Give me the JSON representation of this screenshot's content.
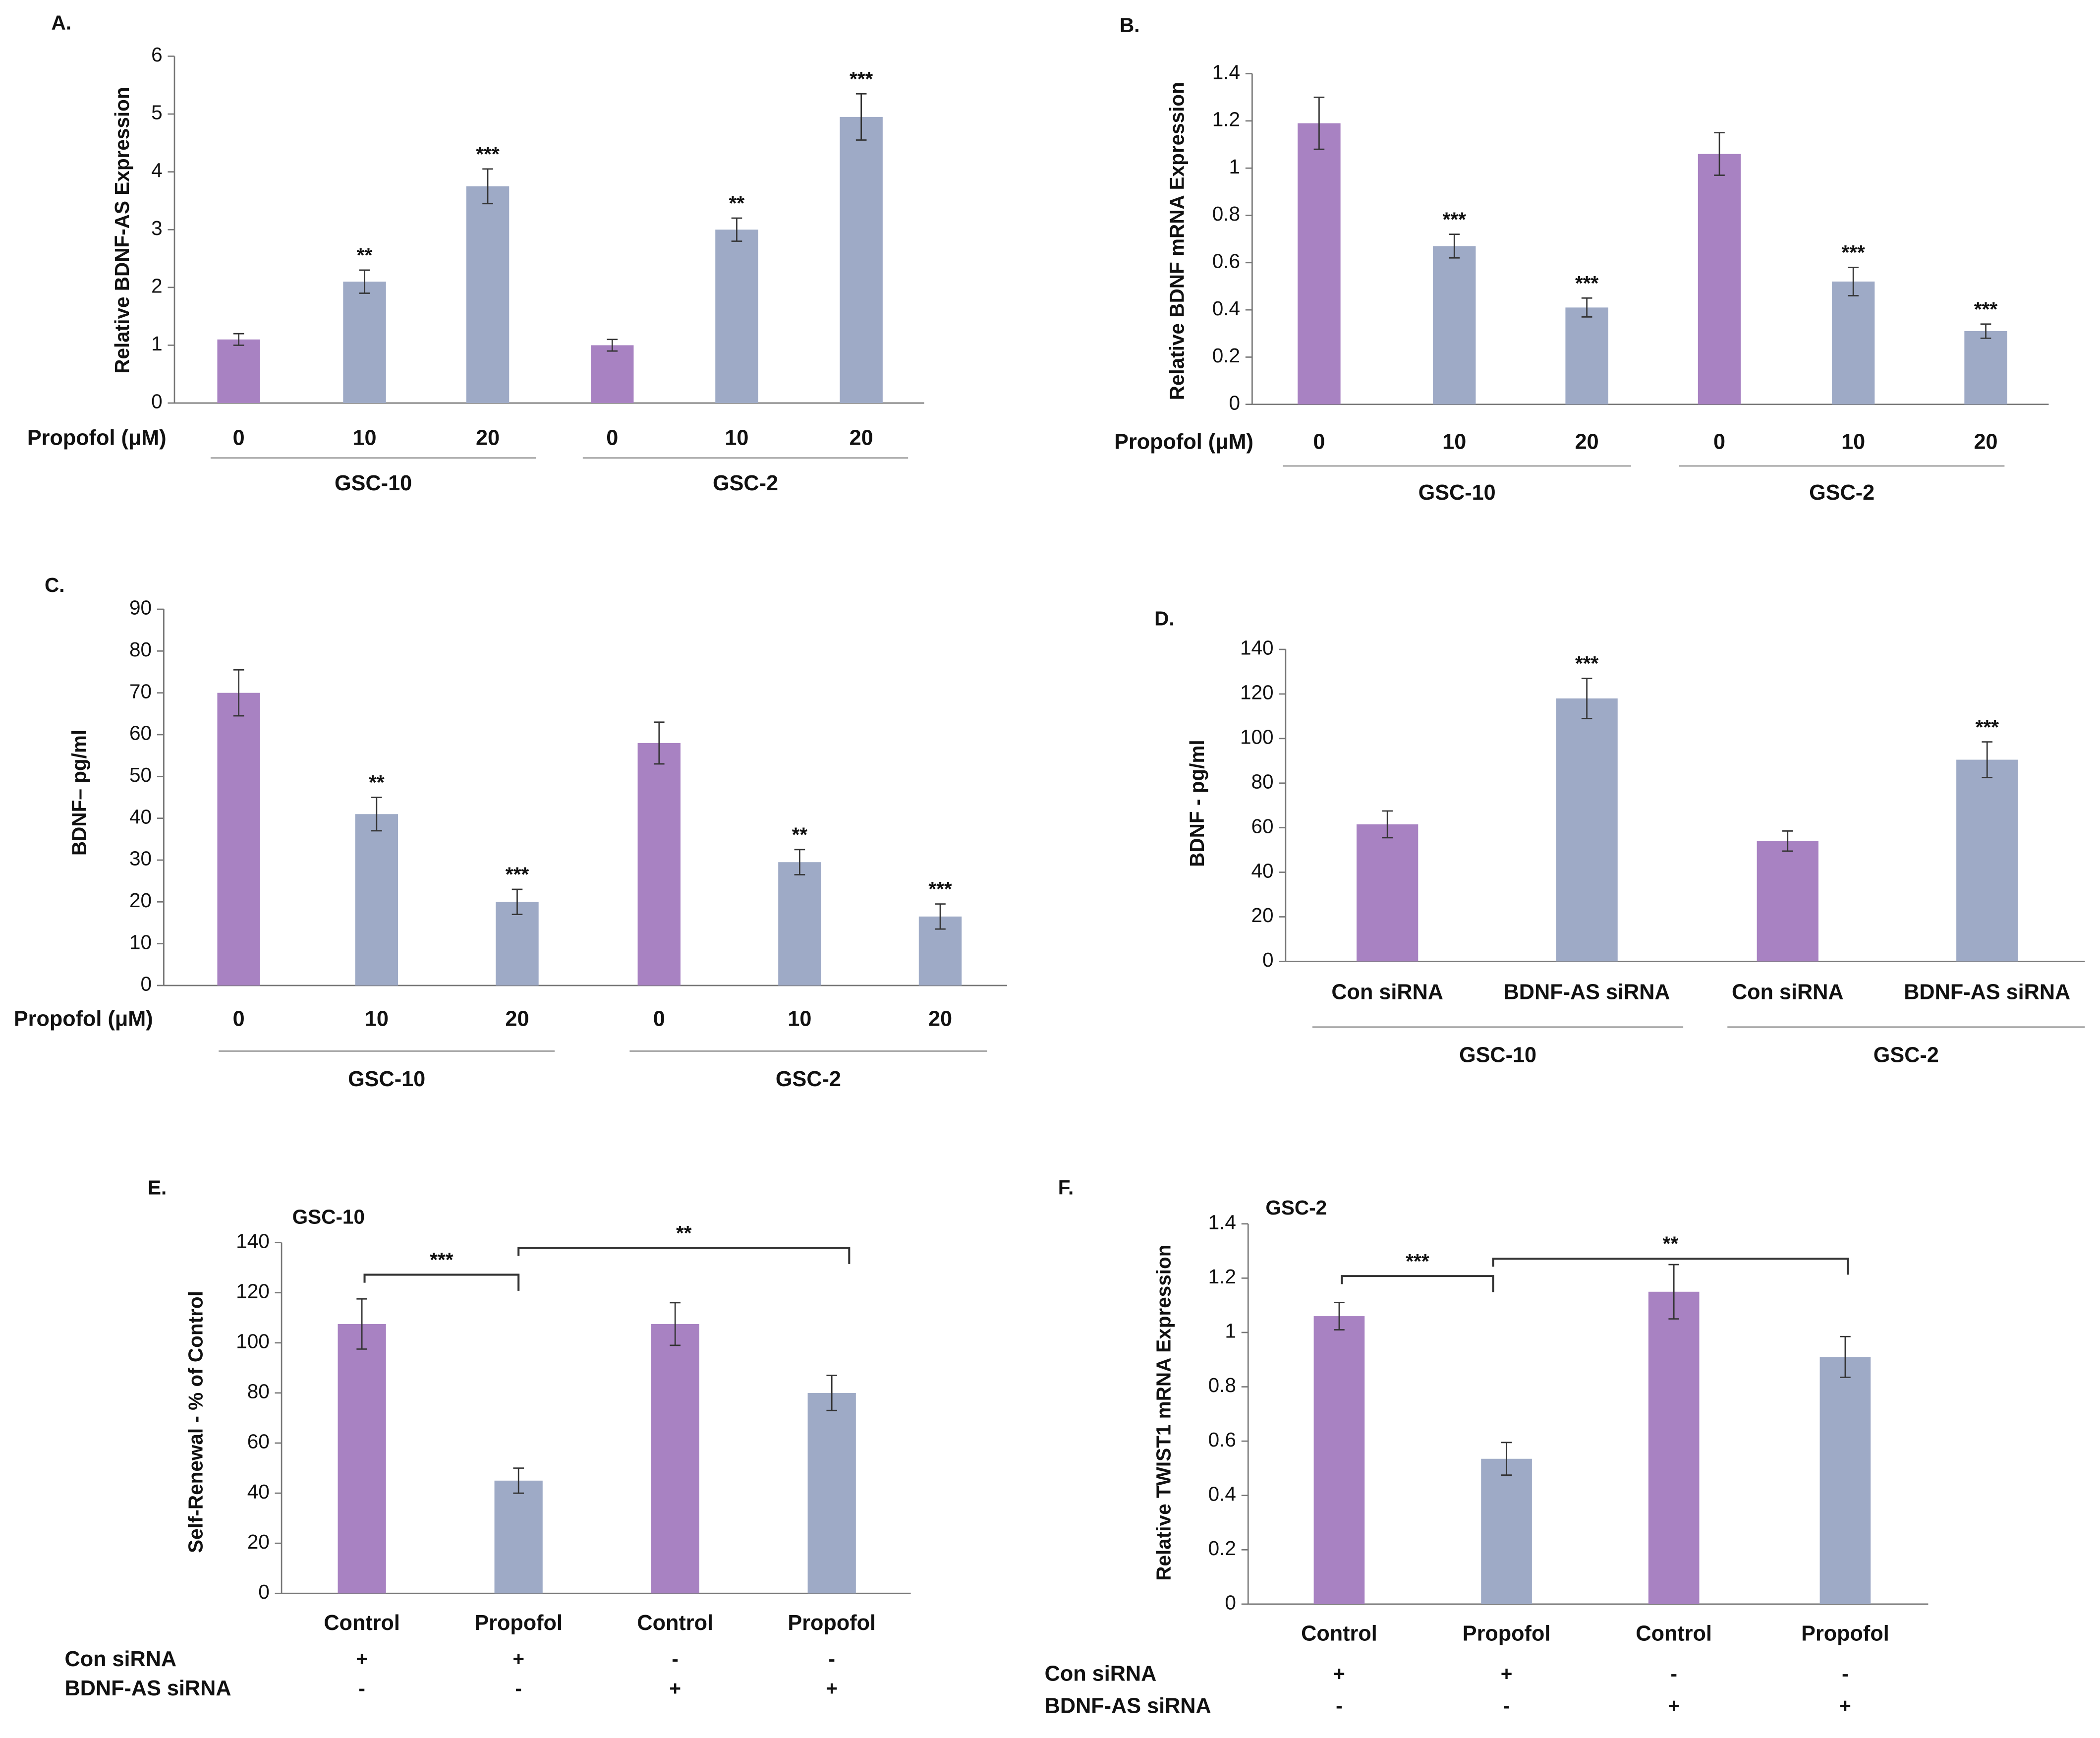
{
  "chart_data": [
    {
      "type": "bar",
      "panel": "A.",
      "ylabel": "Relative BDNF-AS Expression",
      "row_label": "Propofol (μM)",
      "categories": [
        "0",
        "10",
        "20",
        "0",
        "10",
        "20"
      ],
      "groups": [
        "GSC-10",
        "GSC-2"
      ],
      "values": [
        1.1,
        2.1,
        3.75,
        1.0,
        3.0,
        4.95
      ],
      "errors": [
        0.1,
        0.2,
        0.3,
        0.1,
        0.2,
        0.4
      ],
      "significance": [
        null,
        "**",
        "***",
        null,
        "**",
        "***"
      ],
      "colors": [
        "#a882c2",
        "#9eaac6",
        "#9eaac6",
        "#a882c2",
        "#9eaac6",
        "#9eaac6"
      ],
      "ylim": [
        0,
        6
      ],
      "yticks": [
        0,
        1,
        2,
        3,
        4,
        5,
        6
      ]
    },
    {
      "type": "bar",
      "panel": "B.",
      "ylabel": "Relative BDNF mRNA Expression",
      "row_label": "Propofol (μM)",
      "categories": [
        "0",
        "10",
        "20",
        "0",
        "10",
        "20"
      ],
      "groups": [
        "GSC-10",
        "GSC-2"
      ],
      "values": [
        1.19,
        0.67,
        0.41,
        1.06,
        0.52,
        0.31
      ],
      "errors": [
        0.11,
        0.05,
        0.04,
        0.09,
        0.06,
        0.03
      ],
      "significance": [
        null,
        "***",
        "***",
        null,
        "***",
        "***"
      ],
      "colors": [
        "#a882c2",
        "#9eaac6",
        "#9eaac6",
        "#a882c2",
        "#9eaac6",
        "#9eaac6"
      ],
      "ylim": [
        0,
        1.4
      ],
      "yticks": [
        0,
        0.2,
        0.4,
        0.6,
        0.8,
        1,
        1.2,
        1.4
      ]
    },
    {
      "type": "bar",
      "panel": "C.",
      "ylabel": "BDNF– pg/ml",
      "row_label": "Propofol (μM)",
      "categories": [
        "0",
        "10",
        "20",
        "0",
        "10",
        "20"
      ],
      "groups": [
        "GSC-10",
        "GSC-2"
      ],
      "values": [
        70,
        41,
        20,
        58,
        29.5,
        16.5
      ],
      "errors": [
        5.5,
        4,
        3,
        5,
        3,
        3
      ],
      "significance": [
        null,
        "**",
        "***",
        null,
        "**",
        "***"
      ],
      "colors": [
        "#a882c2",
        "#9eaac6",
        "#9eaac6",
        "#a882c2",
        "#9eaac6",
        "#9eaac6"
      ],
      "ylim": [
        0,
        90
      ],
      "yticks": [
        0,
        10,
        20,
        30,
        40,
        50,
        60,
        70,
        80,
        90
      ]
    },
    {
      "type": "bar",
      "panel": "D.",
      "ylabel": "BDNF - pg/ml",
      "categories": [
        "Con siRNA",
        "BDNF-AS siRNA",
        "Con siRNA",
        "BDNF-AS siRNA"
      ],
      "groups": [
        "GSC-10",
        "GSC-2"
      ],
      "values": [
        61.5,
        118,
        54,
        90.5
      ],
      "errors": [
        6,
        9,
        4.5,
        8
      ],
      "significance": [
        null,
        "***",
        null,
        "***"
      ],
      "colors": [
        "#a882c2",
        "#9eaac6",
        "#a882c2",
        "#9eaac6"
      ],
      "ylim": [
        0,
        140
      ],
      "yticks": [
        0,
        20,
        40,
        60,
        80,
        100,
        120,
        140
      ]
    },
    {
      "type": "bar",
      "panel": "E.",
      "ylabel": "Self-Renewal - % of Control",
      "subtitle": "GSC-10",
      "categories": [
        "Control",
        "Propofol",
        "Control",
        "Propofol"
      ],
      "rows": [
        {
          "name": "Con siRNA",
          "values": [
            "+",
            "+",
            "-",
            "-"
          ]
        },
        {
          "name": "BDNF-AS siRNA",
          "values": [
            "-",
            "-",
            "+",
            "+"
          ]
        }
      ],
      "values": [
        107.5,
        45,
        107.5,
        80
      ],
      "errors": [
        10,
        5,
        8.5,
        7
      ],
      "brackets": [
        "***",
        "**"
      ],
      "colors": [
        "#a882c2",
        "#9eaac6",
        "#a882c2",
        "#9eaac6"
      ],
      "ylim": [
        0,
        140
      ],
      "yticks": [
        0,
        20,
        40,
        60,
        80,
        100,
        120,
        140
      ]
    },
    {
      "type": "bar",
      "panel": "F.",
      "ylabel": "Relative TWIST1 mRNA Expression",
      "subtitle": "GSC-2",
      "categories": [
        "Control",
        "Propofol",
        "Control",
        "Propofol"
      ],
      "rows": [
        {
          "name": "Con siRNA",
          "values": [
            "+",
            "+",
            "-",
            "-"
          ]
        },
        {
          "name": "BDNF-AS siRNA",
          "values": [
            "-",
            "-",
            "+",
            "+"
          ]
        }
      ],
      "values": [
        1.06,
        0.535,
        1.15,
        0.91
      ],
      "errors": [
        0.05,
        0.06,
        0.1,
        0.075
      ],
      "brackets": [
        "***",
        "**"
      ],
      "colors": [
        "#a882c2",
        "#9eaac6",
        "#a882c2",
        "#9eaac6"
      ],
      "ylim": [
        0,
        1.4
      ],
      "yticks": [
        0,
        0.2,
        0.4,
        0.6,
        0.8,
        1,
        1.2,
        1.4
      ]
    }
  ]
}
